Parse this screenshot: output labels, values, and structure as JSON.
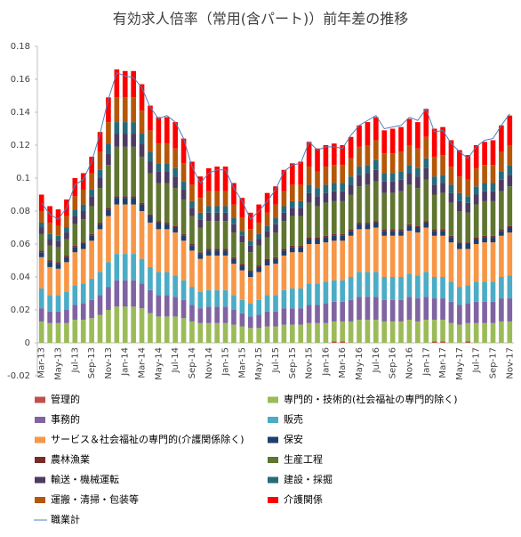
{
  "chart_data": {
    "type": "bar",
    "stacked": true,
    "title": "有効求人倍率（常用(含パート)）前年差の推移",
    "categories": [
      "Mar-13",
      null,
      "May-13",
      null,
      "Jul-13",
      null,
      "Sep-13",
      null,
      "Nov-13",
      null,
      "Jan-14",
      null,
      "Mar-14",
      null,
      "May-14",
      null,
      "Jul-14",
      null,
      "Sep-14",
      null,
      "Nov-14",
      null,
      "Jan-15",
      null,
      "Mar-15",
      null,
      "May-15",
      null,
      "Jul-15",
      null,
      "Sep-15",
      null,
      "Nov-15",
      null,
      "Jan-16",
      null,
      "Mar-16",
      null,
      "May-16",
      null,
      "Jul-16",
      null,
      "Sep-16",
      null,
      "Nov-16",
      null,
      "Jan-17",
      null,
      "Mar-17",
      null,
      "May-17",
      null,
      "Jul-17",
      null,
      "Sep-17",
      null,
      "Nov-17"
    ],
    "ylim": [
      -0.02,
      0.18
    ],
    "yticks": [
      -0.02,
      0,
      0.02,
      0.04,
      0.06,
      0.08,
      0.1,
      0.12,
      0.14,
      0.16,
      0.18
    ],
    "series": [
      {
        "name": "管理的",
        "color": "#c0504d",
        "values": [
          0,
          0,
          0,
          0,
          0,
          0,
          0,
          0,
          0,
          0,
          0,
          0,
          0,
          0,
          0,
          0,
          0,
          0,
          0,
          0,
          0,
          0,
          0,
          0,
          0,
          0,
          0,
          0,
          0,
          0,
          0,
          0,
          0,
          0,
          0,
          0.001,
          0.001,
          0,
          0,
          0,
          0,
          0,
          0,
          0,
          0,
          0,
          0,
          0.001,
          0.001,
          0,
          0,
          0.001,
          0,
          0,
          0,
          0,
          0
        ]
      },
      {
        "name": "専門的・技術的(社会福祉の専門的除く)",
        "color": "#9bbb59",
        "values": [
          0.013,
          0.012,
          0.012,
          0.012,
          0.014,
          0.014,
          0.015,
          0.017,
          0.02,
          0.022,
          0.022,
          0.022,
          0.021,
          0.018,
          0.016,
          0.016,
          0.016,
          0.015,
          0.013,
          0.012,
          0.012,
          0.012,
          0.012,
          0.011,
          0.01,
          0.009,
          0.009,
          0.01,
          0.01,
          0.011,
          0.011,
          0.011,
          0.012,
          0.012,
          0.012,
          0.012,
          0.012,
          0.013,
          0.014,
          0.014,
          0.014,
          0.013,
          0.013,
          0.013,
          0.014,
          0.013,
          0.014,
          0.013,
          0.013,
          0.012,
          0.011,
          0.011,
          0.012,
          0.012,
          0.012,
          0.013,
          0.013
        ]
      },
      {
        "name": "事務的",
        "color": "#8064a2",
        "values": [
          0.008,
          0.007,
          0.007,
          0.008,
          0.009,
          0.01,
          0.011,
          0.012,
          0.014,
          0.016,
          0.016,
          0.016,
          0.015,
          0.014,
          0.013,
          0.013,
          0.012,
          0.011,
          0.01,
          0.009,
          0.01,
          0.01,
          0.01,
          0.009,
          0.008,
          0.007,
          0.008,
          0.009,
          0.009,
          0.01,
          0.01,
          0.01,
          0.011,
          0.011,
          0.012,
          0.012,
          0.012,
          0.013,
          0.014,
          0.014,
          0.014,
          0.013,
          0.013,
          0.013,
          0.014,
          0.014,
          0.014,
          0.013,
          0.013,
          0.013,
          0.012,
          0.012,
          0.013,
          0.013,
          0.013,
          0.014,
          0.014
        ]
      },
      {
        "name": "販売",
        "color": "#4bacc6",
        "values": [
          0.012,
          0.01,
          0.01,
          0.011,
          0.012,
          0.012,
          0.013,
          0.014,
          0.015,
          0.016,
          0.016,
          0.016,
          0.015,
          0.014,
          0.014,
          0.014,
          0.013,
          0.012,
          0.011,
          0.01,
          0.01,
          0.01,
          0.01,
          0.009,
          0.008,
          0.008,
          0.009,
          0.01,
          0.01,
          0.011,
          0.012,
          0.012,
          0.013,
          0.013,
          0.013,
          0.013,
          0.013,
          0.014,
          0.015,
          0.015,
          0.015,
          0.014,
          0.014,
          0.014,
          0.014,
          0.014,
          0.015,
          0.013,
          0.013,
          0.012,
          0.011,
          0.011,
          0.012,
          0.012,
          0.012,
          0.013,
          0.014
        ]
      },
      {
        "name": "サービス＆社会福祉の専門的(介護関係除く)",
        "color": "#f79646",
        "values": [
          0.019,
          0.017,
          0.016,
          0.018,
          0.02,
          0.021,
          0.023,
          0.026,
          0.028,
          0.03,
          0.03,
          0.03,
          0.029,
          0.027,
          0.026,
          0.026,
          0.026,
          0.024,
          0.022,
          0.02,
          0.021,
          0.021,
          0.021,
          0.019,
          0.018,
          0.016,
          0.017,
          0.018,
          0.019,
          0.021,
          0.022,
          0.022,
          0.024,
          0.024,
          0.024,
          0.024,
          0.024,
          0.025,
          0.026,
          0.026,
          0.027,
          0.025,
          0.025,
          0.025,
          0.026,
          0.026,
          0.027,
          0.025,
          0.025,
          0.024,
          0.023,
          0.022,
          0.023,
          0.024,
          0.024,
          0.025,
          0.026
        ]
      },
      {
        "name": "保安",
        "color": "#1f3f6e",
        "values": [
          0.003,
          0.003,
          0.003,
          0.003,
          0.003,
          0.003,
          0.003,
          0.003,
          0.004,
          0.004,
          0.004,
          0.004,
          0.004,
          0.004,
          0.004,
          0.003,
          0.003,
          0.003,
          0.003,
          0.003,
          0.003,
          0.003,
          0.003,
          0.003,
          0.003,
          0.003,
          0.003,
          0.003,
          0.003,
          0.003,
          0.003,
          0.003,
          0.003,
          0.003,
          0.003,
          0.003,
          0.003,
          0.003,
          0.003,
          0.003,
          0.003,
          0.003,
          0.003,
          0.003,
          0.003,
          0.003,
          0.003,
          0.003,
          0.003,
          0.003,
          0.003,
          0.003,
          0.003,
          0.003,
          0.003,
          0.003,
          0.003
        ]
      },
      {
        "name": "農林漁業",
        "color": "#772c2a",
        "values": [
          0.001,
          0.001,
          0.001,
          0.001,
          0.001,
          0.001,
          0.001,
          0.001,
          0.001,
          0.001,
          0.001,
          0.001,
          0.001,
          0.001,
          0.001,
          0.001,
          0.001,
          0.001,
          0.001,
          0.001,
          0.001,
          0.001,
          0.001,
          0.001,
          0.001,
          0.001,
          0.001,
          0.001,
          0.001,
          0.001,
          0.001,
          0.001,
          0.001,
          0.001,
          0.001,
          0.001,
          0.001,
          0.001,
          0.001,
          0.001,
          0.001,
          0.001,
          0.001,
          0.001,
          0.001,
          0.001,
          0.001,
          0.001,
          0.001,
          0.001,
          0.001,
          0.001,
          0.001,
          0.001,
          0.001,
          0.001,
          0.001
        ]
      },
      {
        "name": "生産工程",
        "color": "#5f7530",
        "values": [
          0.01,
          0.009,
          0.009,
          0.01,
          0.013,
          0.014,
          0.017,
          0.021,
          0.026,
          0.03,
          0.03,
          0.03,
          0.028,
          0.025,
          0.023,
          0.024,
          0.023,
          0.021,
          0.017,
          0.015,
          0.017,
          0.017,
          0.017,
          0.015,
          0.013,
          0.011,
          0.012,
          0.013,
          0.015,
          0.017,
          0.018,
          0.018,
          0.021,
          0.019,
          0.02,
          0.02,
          0.02,
          0.021,
          0.022,
          0.023,
          0.024,
          0.022,
          0.022,
          0.023,
          0.024,
          0.023,
          0.025,
          0.021,
          0.022,
          0.02,
          0.019,
          0.018,
          0.02,
          0.021,
          0.021,
          0.023,
          0.024
        ]
      },
      {
        "name": "輸送・機械運転",
        "color": "#4d3b62",
        "values": [
          0.004,
          0.004,
          0.004,
          0.004,
          0.005,
          0.005,
          0.006,
          0.006,
          0.007,
          0.008,
          0.008,
          0.008,
          0.008,
          0.007,
          0.007,
          0.007,
          0.007,
          0.006,
          0.005,
          0.005,
          0.005,
          0.005,
          0.005,
          0.005,
          0.004,
          0.004,
          0.004,
          0.004,
          0.005,
          0.005,
          0.005,
          0.005,
          0.006,
          0.006,
          0.006,
          0.006,
          0.006,
          0.006,
          0.007,
          0.007,
          0.007,
          0.007,
          0.007,
          0.007,
          0.007,
          0.007,
          0.007,
          0.006,
          0.006,
          0.006,
          0.006,
          0.006,
          0.006,
          0.006,
          0.006,
          0.007,
          0.007
        ]
      },
      {
        "name": "建設・採掘",
        "color": "#276a7c",
        "values": [
          0.003,
          0.003,
          0.003,
          0.003,
          0.004,
          0.004,
          0.004,
          0.005,
          0.006,
          0.007,
          0.007,
          0.007,
          0.006,
          0.006,
          0.005,
          0.005,
          0.005,
          0.005,
          0.004,
          0.004,
          0.004,
          0.004,
          0.004,
          0.004,
          0.003,
          0.003,
          0.003,
          0.003,
          0.004,
          0.004,
          0.004,
          0.004,
          0.005,
          0.005,
          0.005,
          0.005,
          0.005,
          0.005,
          0.005,
          0.005,
          0.006,
          0.005,
          0.005,
          0.005,
          0.005,
          0.005,
          0.006,
          0.005,
          0.005,
          0.005,
          0.005,
          0.004,
          0.005,
          0.005,
          0.005,
          0.005,
          0.006
        ]
      },
      {
        "name": "運搬・清掃・包装等",
        "color": "#b65708",
        "values": [
          0.007,
          0.007,
          0.006,
          0.007,
          0.008,
          0.009,
          0.01,
          0.011,
          0.013,
          0.015,
          0.015,
          0.015,
          0.014,
          0.013,
          0.012,
          0.012,
          0.012,
          0.011,
          0.01,
          0.009,
          0.009,
          0.009,
          0.009,
          0.008,
          0.008,
          0.007,
          0.007,
          0.008,
          0.008,
          0.009,
          0.01,
          0.01,
          0.011,
          0.01,
          0.011,
          0.011,
          0.011,
          0.011,
          0.012,
          0.012,
          0.012,
          0.012,
          0.012,
          0.012,
          0.012,
          0.012,
          0.013,
          0.012,
          0.012,
          0.011,
          0.01,
          0.01,
          0.011,
          0.011,
          0.011,
          0.012,
          0.012
        ]
      },
      {
        "name": "介護関係",
        "color": "#ff0000",
        "values": [
          0.01,
          0.01,
          0.01,
          0.01,
          0.011,
          0.01,
          0.01,
          0.012,
          0.015,
          0.017,
          0.016,
          0.016,
          0.016,
          0.015,
          0.016,
          0.016,
          0.016,
          0.015,
          0.014,
          0.013,
          0.014,
          0.015,
          0.015,
          0.013,
          0.012,
          0.01,
          0.011,
          0.012,
          0.011,
          0.013,
          0.013,
          0.014,
          0.015,
          0.014,
          0.013,
          0.013,
          0.012,
          0.013,
          0.013,
          0.014,
          0.014,
          0.014,
          0.015,
          0.015,
          0.016,
          0.016,
          0.017,
          0.017,
          0.017,
          0.016,
          0.016,
          0.015,
          0.014,
          0.014,
          0.015,
          0.016,
          0.018
        ]
      },
      {
        "name": "職業計",
        "color": "#4f81bd",
        "type": "line",
        "values": [
          0.085,
          0.078,
          0.075,
          0.082,
          0.096,
          0.099,
          0.11,
          0.127,
          0.148,
          0.164,
          0.162,
          0.161,
          0.155,
          0.143,
          0.136,
          0.138,
          0.134,
          0.124,
          0.107,
          0.097,
          0.103,
          0.105,
          0.105,
          0.094,
          0.086,
          0.075,
          0.08,
          0.086,
          0.093,
          0.104,
          0.108,
          0.109,
          0.122,
          0.117,
          0.119,
          0.119,
          0.118,
          0.126,
          0.132,
          0.135,
          0.138,
          0.13,
          0.131,
          0.132,
          0.137,
          0.135,
          0.142,
          0.128,
          0.129,
          0.121,
          0.116,
          0.112,
          0.119,
          0.123,
          0.124,
          0.132,
          0.139
        ]
      }
    ]
  }
}
